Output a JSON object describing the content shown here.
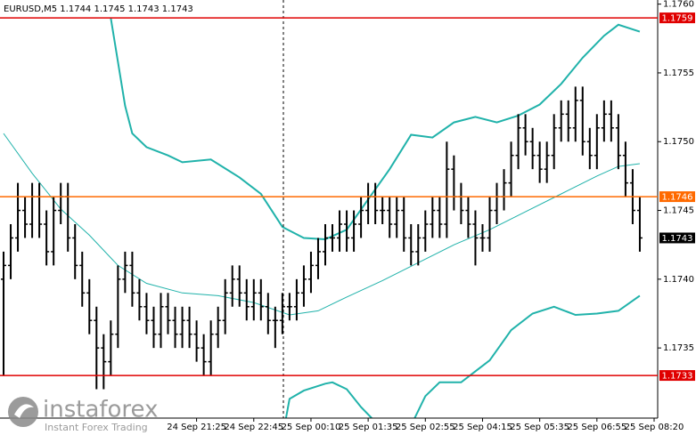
{
  "chart_data": {
    "type": "ohlc",
    "title": "EURUSD,M5  1.1744 1.1745 1.1743 1.1743",
    "color": "#000000",
    "categories": [
      null,
      null,
      null,
      null,
      null,
      null,
      null,
      null,
      null,
      null,
      null,
      null,
      null,
      null,
      null,
      null,
      null,
      null,
      null,
      null,
      null,
      null,
      null,
      null,
      null,
      null,
      null,
      "24 Sep 21:25",
      null,
      null,
      null,
      null,
      null,
      null,
      null,
      "24 Sep 22:45",
      null,
      null,
      null,
      null,
      null,
      null,
      null,
      "25 Sep 00:10",
      null,
      null,
      null,
      null,
      null,
      null,
      null,
      "25 Sep 01:35",
      null,
      null,
      null,
      null,
      null,
      null,
      null,
      "25 Sep 02:55",
      null,
      null,
      null,
      null,
      null,
      null,
      null,
      "25 Sep 04:15",
      null,
      null,
      null,
      null,
      null,
      null,
      null,
      "25 Sep 05:35",
      null,
      null,
      null,
      null,
      null,
      null,
      null,
      "25 Sep 06:55",
      null,
      null,
      null,
      null,
      null,
      null,
      null,
      "25 Sep 08:20"
    ],
    "open": [
      1.174,
      1.1741,
      1.1743,
      1.1745,
      1.1744,
      1.1746,
      1.1744,
      1.1742,
      1.1745,
      1.1746,
      1.1743,
      1.1741,
      1.1739,
      1.1737,
      1.1735,
      1.1734,
      1.1736,
      1.174,
      1.1741,
      1.1739,
      1.1738,
      1.1737,
      1.1736,
      1.1738,
      1.1737,
      1.1736,
      1.1737,
      1.1736,
      1.1735,
      1.1734,
      1.1736,
      1.1737,
      1.1739,
      1.174,
      1.1739,
      1.1738,
      1.1739,
      1.1738,
      1.1737,
      1.1737,
      1.1738,
      1.1738,
      1.1739,
      1.174,
      1.1741,
      1.1742,
      1.1743,
      1.1743,
      1.1744,
      1.1743,
      1.1744,
      1.1745,
      1.1746,
      1.1745,
      1.1745,
      1.1744,
      1.1745,
      1.1743,
      1.1742,
      1.1743,
      1.1744,
      1.1745,
      1.1744,
      1.1748,
      1.1746,
      1.1745,
      1.1744,
      1.1743,
      1.1743,
      1.1745,
      1.1746,
      1.1747,
      1.1749,
      1.1751,
      1.175,
      1.1749,
      1.1748,
      1.1749,
      1.1751,
      1.1752,
      1.1751,
      1.1753,
      1.175,
      1.1749,
      1.1751,
      1.1752,
      1.1751,
      1.1749,
      1.1747,
      1.1745,
      null,
      null
    ],
    "high": [
      1.1742,
      1.1744,
      1.1747,
      1.1746,
      1.1747,
      1.1747,
      1.1745,
      1.1746,
      1.1747,
      1.1747,
      1.1744,
      1.1742,
      1.174,
      1.1738,
      1.1736,
      1.1737,
      1.1741,
      1.1742,
      1.1742,
      1.174,
      1.1739,
      1.1738,
      1.1739,
      1.1739,
      1.1738,
      1.1738,
      1.1738,
      1.1737,
      1.1736,
      1.1737,
      1.1738,
      1.174,
      1.1741,
      1.1741,
      1.174,
      1.174,
      1.174,
      1.1739,
      1.1738,
      1.1739,
      1.1739,
      1.174,
      1.1741,
      1.1742,
      1.1743,
      1.1744,
      1.1744,
      1.1745,
      1.1745,
      1.1745,
      1.1746,
      1.1747,
      1.1747,
      1.1746,
      1.1746,
      1.1746,
      1.1746,
      1.1744,
      1.1744,
      1.1745,
      1.1746,
      1.1746,
      1.175,
      1.1749,
      1.1747,
      1.1746,
      1.1745,
      1.1744,
      1.1746,
      1.1747,
      1.1748,
      1.175,
      1.1752,
      1.1752,
      1.1751,
      1.175,
      1.175,
      1.1752,
      1.1753,
      1.1753,
      1.1754,
      1.1754,
      1.1751,
      1.1752,
      1.1753,
      1.1753,
      1.1752,
      1.175,
      1.1748,
      1.1746,
      null,
      null
    ],
    "low": [
      1.1733,
      1.174,
      1.1742,
      1.1743,
      1.1743,
      1.1743,
      1.1741,
      1.1741,
      1.1744,
      1.1742,
      1.174,
      1.1738,
      1.1736,
      1.1732,
      1.1732,
      1.1733,
      1.1735,
      1.1739,
      1.1738,
      1.1737,
      1.1736,
      1.1735,
      1.1735,
      1.1736,
      1.1735,
      1.1735,
      1.1735,
      1.1734,
      1.1733,
      1.1733,
      1.1735,
      1.1736,
      1.1738,
      1.1738,
      1.1737,
      1.1737,
      1.1737,
      1.1736,
      1.1735,
      1.1736,
      1.1737,
      1.1737,
      1.1738,
      1.1739,
      1.174,
      1.1741,
      1.1742,
      1.1742,
      1.1742,
      1.1742,
      1.1743,
      1.1744,
      1.1744,
      1.1744,
      1.1743,
      1.1743,
      1.1742,
      1.1741,
      1.1741,
      1.1742,
      1.1743,
      1.1743,
      1.1743,
      1.1745,
      1.1744,
      1.1743,
      1.1741,
      1.1742,
      1.1742,
      1.1744,
      1.1745,
      1.1746,
      1.1748,
      1.1749,
      1.1748,
      1.1747,
      1.1747,
      1.1748,
      1.175,
      1.175,
      1.175,
      1.1749,
      1.1748,
      1.1748,
      1.175,
      1.175,
      1.1748,
      1.1746,
      1.1744,
      1.1742,
      null,
      null
    ],
    "close": [
      1.1741,
      1.1743,
      1.1745,
      1.1744,
      1.1746,
      1.1744,
      1.1742,
      1.1745,
      1.1746,
      1.1743,
      1.1741,
      1.1739,
      1.1737,
      1.1735,
      1.1734,
      1.1736,
      1.174,
      1.1741,
      1.1739,
      1.1738,
      1.1737,
      1.1736,
      1.1738,
      1.1737,
      1.1736,
      1.1737,
      1.1736,
      1.1735,
      1.1734,
      1.1736,
      1.1737,
      1.1739,
      1.174,
      1.1739,
      1.1738,
      1.1739,
      1.1738,
      1.1737,
      1.1737,
      1.1738,
      1.1738,
      1.1739,
      1.174,
      1.1741,
      1.1742,
      1.1743,
      1.1743,
      1.1744,
      1.1743,
      1.1744,
      1.1745,
      1.1746,
      1.1745,
      1.1745,
      1.1744,
      1.1745,
      1.1743,
      1.1742,
      1.1743,
      1.1744,
      1.1745,
      1.1744,
      1.1748,
      1.1746,
      1.1745,
      1.1744,
      1.1743,
      1.1743,
      1.1745,
      1.1746,
      1.1747,
      1.1749,
      1.1751,
      1.175,
      1.1749,
      1.1748,
      1.1749,
      1.1751,
      1.1752,
      1.1751,
      1.1753,
      1.175,
      1.1749,
      1.1751,
      1.1752,
      1.1751,
      1.1749,
      1.1747,
      1.1745,
      1.1743,
      null,
      null
    ],
    "overlays": [
      {
        "color": "#20b2aa",
        "width": 2,
        "x": [
          15,
          17,
          18,
          20,
          23,
          25,
          29,
          33,
          36,
          39,
          42,
          45,
          48,
          51,
          54,
          57,
          60,
          63,
          66,
          69,
          72,
          75,
          78,
          81,
          84,
          86,
          89
        ],
        "values": [
          1.1759,
          1.17526,
          1.17506,
          1.17496,
          1.1749,
          1.17485,
          1.17487,
          1.17474,
          1.17462,
          1.17438,
          1.1743,
          1.17429,
          1.17436,
          1.17458,
          1.1748,
          1.17505,
          1.17503,
          1.17514,
          1.17518,
          1.17514,
          1.17519,
          1.17527,
          1.17542,
          1.17561,
          1.17577,
          1.17585,
          1.1758
        ]
      },
      {
        "color": "#20b2aa",
        "width": 1,
        "x": [
          0,
          4,
          8,
          12,
          16,
          20,
          25,
          30,
          35,
          40,
          44,
          48,
          53,
          58,
          63,
          68,
          73,
          78,
          83,
          86,
          89
        ],
        "values": [
          1.17506,
          1.17477,
          1.17451,
          1.17432,
          1.1741,
          1.17397,
          1.1739,
          1.17388,
          1.17383,
          1.17374,
          1.17377,
          1.17387,
          1.17399,
          1.17412,
          1.17425,
          1.17436,
          1.17449,
          1.17462,
          1.17475,
          1.17482,
          1.17484
        ]
      },
      {
        "color": "#20b2aa",
        "width": 2,
        "x": [
          39.5,
          40,
          42,
          45,
          46,
          48,
          50,
          51.5
        ],
        "values": [
          1.17299,
          1.17313,
          1.17319,
          1.17324,
          1.17325,
          1.1732,
          1.17307,
          1.17299
        ]
      },
      {
        "color": "#20b2aa",
        "width": 2,
        "x": [
          57.5,
          59,
          61,
          64,
          66,
          68,
          71,
          74,
          77,
          80,
          83,
          86,
          89
        ],
        "values": [
          1.17299,
          1.17315,
          1.17325,
          1.17325,
          1.17333,
          1.17341,
          1.17363,
          1.17375,
          1.1738,
          1.17374,
          1.17375,
          1.17377,
          1.17388
        ]
      }
    ],
    "levels": [
      {
        "value": 1.1759,
        "color": "#e00000"
      },
      {
        "value": 1.1746,
        "color": "#ff6a00"
      },
      {
        "value": 1.1733,
        "color": "#e00000"
      }
    ],
    "current_price": 1.1743,
    "ylim": [
      1.17299,
      1.17603
    ],
    "yticks": [
      {
        "value": 1.176,
        "label": "1.1760"
      },
      1.1755,
      {
        "value": 1.175,
        "label": "1.1750"
      },
      1.1745,
      {
        "value": 1.174,
        "label": "1.1740"
      },
      1.1735
    ],
    "watermark": {
      "brand": "instaforex",
      "tagline": "Instant Forex Trading"
    }
  }
}
